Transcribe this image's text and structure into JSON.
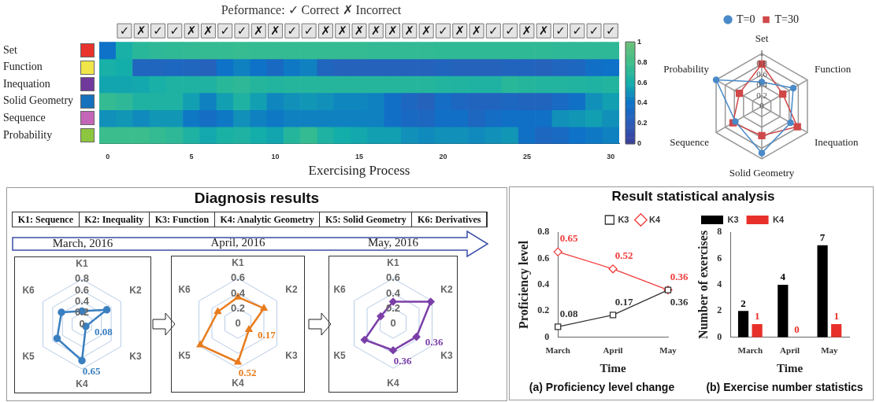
{
  "chart_data": [
    {
      "type": "heatmap",
      "title": "Peformance: ✓ Correct ✗ Incorrect",
      "xlabel": "Exercising Process",
      "x": [
        0,
        1,
        2,
        3,
        4,
        5,
        6,
        7,
        8,
        9,
        10,
        11,
        12,
        13,
        14,
        15,
        16,
        17,
        18,
        19,
        20,
        21,
        22,
        23,
        24,
        25,
        26,
        27,
        28,
        29,
        30
      ],
      "xlim": [
        -0.5,
        30.5
      ],
      "xticks": [
        0,
        5,
        10,
        15,
        20,
        25,
        30
      ],
      "y_categories": [
        "Set",
        "Function",
        "Inequation",
        "Solid Geometry",
        "Sequence",
        "Probability"
      ],
      "cells": [
        [
          0.4,
          0.62,
          0.7,
          0.72,
          0.73,
          0.74,
          0.75,
          0.75,
          0.76,
          0.75,
          0.75,
          0.75,
          0.75,
          0.75,
          0.75,
          0.75,
          0.74,
          0.74,
          0.74,
          0.74,
          0.73,
          0.73,
          0.73,
          0.73,
          0.73,
          0.73,
          0.73,
          0.72,
          0.72,
          0.72,
          0.72
        ],
        [
          0.62,
          0.6,
          0.28,
          0.28,
          0.3,
          0.28,
          0.25,
          0.4,
          0.45,
          0.4,
          0.32,
          0.42,
          0.45,
          0.28,
          0.25,
          0.25,
          0.25,
          0.25,
          0.25,
          0.25,
          0.27,
          0.25,
          0.25,
          0.25,
          0.27,
          0.27,
          0.25,
          0.28,
          0.3,
          0.37,
          0.4
        ],
        [
          0.57,
          0.57,
          0.58,
          0.62,
          0.65,
          0.65,
          0.65,
          0.7,
          0.72,
          0.68,
          0.67,
          0.68,
          0.68,
          0.68,
          0.68,
          0.68,
          0.68,
          0.68,
          0.68,
          0.68,
          0.67,
          0.66,
          0.65,
          0.65,
          0.7,
          0.68,
          0.67,
          0.67,
          0.66,
          0.65,
          0.67
        ],
        [
          0.75,
          0.72,
          0.65,
          0.65,
          0.65,
          0.55,
          0.45,
          0.55,
          0.65,
          0.55,
          0.47,
          0.5,
          0.52,
          0.5,
          0.47,
          0.47,
          0.45,
          0.37,
          0.3,
          0.25,
          0.35,
          0.3,
          0.27,
          0.27,
          0.3,
          0.27,
          0.27,
          0.33,
          0.38,
          0.5,
          0.55
        ],
        [
          0.5,
          0.52,
          0.48,
          0.52,
          0.52,
          0.42,
          0.35,
          0.42,
          0.5,
          0.45,
          0.42,
          0.45,
          0.45,
          0.45,
          0.45,
          0.45,
          0.45,
          0.37,
          0.32,
          0.3,
          0.37,
          0.37,
          0.3,
          0.35,
          0.38,
          0.38,
          0.38,
          0.5,
          0.52,
          0.55,
          0.5
        ],
        [
          0.78,
          0.78,
          0.78,
          0.75,
          0.72,
          0.65,
          0.58,
          0.63,
          0.65,
          0.6,
          0.57,
          0.68,
          0.75,
          0.65,
          0.6,
          0.58,
          0.55,
          0.55,
          0.5,
          0.48,
          0.5,
          0.5,
          0.48,
          0.5,
          0.52,
          0.38,
          0.3,
          0.33,
          0.4,
          0.42,
          0.45
        ]
      ],
      "clim": [
        0,
        1
      ],
      "cticks": [
        0,
        0.2,
        0.4,
        0.6,
        0.8,
        1
      ],
      "annotations": [
        "✓",
        "✗",
        "✓",
        "✓",
        "✗",
        "✗",
        "✓",
        "✓",
        "✗",
        "✗",
        "✓",
        "✓",
        "✗",
        "✗",
        "✗",
        "✗",
        "✗",
        "✗",
        "✗",
        "✓",
        "✗",
        "✗",
        "✓",
        "✓",
        "✗",
        "✗",
        "✓",
        "✓",
        "✓",
        "✓"
      ]
    },
    {
      "type": "radar",
      "categories": [
        "Set",
        "Function",
        "Inequation",
        "Solid Geometry",
        "Sequence",
        "Probability"
      ],
      "ylim": [
        0,
        1
      ],
      "yticks": [
        0,
        0.2,
        0.4,
        0.6,
        0.8,
        1
      ],
      "legend": "top",
      "series": [
        {
          "name": "T=0",
          "color": "#4a8ac8",
          "marker": "circle",
          "values": [
            0.46,
            0.69,
            0.63,
            0.89,
            0.58,
            1.0
          ]
        },
        {
          "name": "T=30",
          "color": "#d04848",
          "marker": "square",
          "values": [
            0.8,
            0.46,
            0.78,
            0.56,
            0.63,
            0.49
          ]
        }
      ]
    },
    {
      "type": "radar",
      "title": "March, 2016",
      "categories": [
        "K1",
        "K2",
        "K3",
        "K4",
        "K5",
        "K6"
      ],
      "ylim": [
        0,
        0.8
      ],
      "yticks": [
        0,
        0.2,
        0.4,
        0.6,
        0.8
      ],
      "annotations": [
        "Diagnosis results",
        "K1: Sequence",
        "K2: Inequality",
        "K3: Function",
        "K4: Analytic Geometry",
        "K5: Solid Geometry",
        "K6: Derivatives"
      ],
      "series": [
        {
          "color": "#3a7fc0",
          "marker": "circle",
          "values": [
            0.23,
            0.51,
            0.08,
            0.65,
            0.51,
            0.42
          ],
          "value_labels": [
            null,
            null,
            "0.08",
            "0.65",
            null,
            null
          ]
        }
      ]
    },
    {
      "type": "radar",
      "title": "April, 2016",
      "categories": [
        "K1",
        "K2",
        "K3",
        "K4",
        "K5",
        "K6"
      ],
      "ylim": [
        0,
        0.6
      ],
      "yticks": [
        0,
        0.2,
        0.4,
        0.6
      ],
      "series": [
        {
          "color": "#e87c1e",
          "marker": "triangle",
          "values": [
            0.35,
            0.4,
            0.17,
            0.52,
            0.58,
            0.31
          ],
          "value_labels": [
            null,
            null,
            "0.17",
            "0.52",
            null,
            null
          ]
        }
      ]
    },
    {
      "type": "radar",
      "title": "May, 2016",
      "categories": [
        "K1",
        "K2",
        "K3",
        "K4",
        "K5",
        "K6"
      ],
      "ylim": [
        0,
        0.6
      ],
      "yticks": [
        0,
        0.2,
        0.4,
        0.6
      ],
      "series": [
        {
          "color": "#7b3fa8",
          "marker": "diamond",
          "values": [
            0.29,
            0.58,
            0.36,
            0.36,
            0.44,
            0.19
          ],
          "value_labels": [
            null,
            null,
            "0.36",
            "0.36",
            null,
            null
          ]
        }
      ]
    },
    {
      "type": "line",
      "title": "Result statistical analysis",
      "xlabel": "Time",
      "ylabel": "Proficiency level",
      "categories": [
        "March",
        "April",
        "May"
      ],
      "ylim": [
        0,
        0.8
      ],
      "yticks": [
        0,
        0.2,
        0.4,
        0.6,
        0.8
      ],
      "legend": "top right",
      "data_labels": true,
      "annotations": [
        "(a) Proficiency level change"
      ],
      "series": [
        {
          "name": "K3",
          "color": "#333333",
          "marker": "square",
          "values": [
            0.08,
            0.17,
            0.36
          ]
        },
        {
          "name": "K4",
          "color": "#f03c3c",
          "marker": "diamond",
          "values": [
            0.65,
            0.52,
            0.36
          ]
        }
      ]
    },
    {
      "type": "bar",
      "xlabel": "Time",
      "ylabel": "Number of exercises",
      "categories": [
        "March",
        "April",
        "May"
      ],
      "ylim": [
        0,
        8
      ],
      "yticks": [
        0,
        2,
        4,
        6,
        8
      ],
      "legend": "top left",
      "data_labels": true,
      "annotations": [
        "(b) Exercise number statistics"
      ],
      "series": [
        {
          "name": "K3",
          "color": "#000000",
          "values": [
            2,
            4,
            7
          ]
        },
        {
          "name": "K4",
          "color": "#e8302a",
          "values": [
            1,
            0,
            1
          ]
        }
      ]
    }
  ]
}
